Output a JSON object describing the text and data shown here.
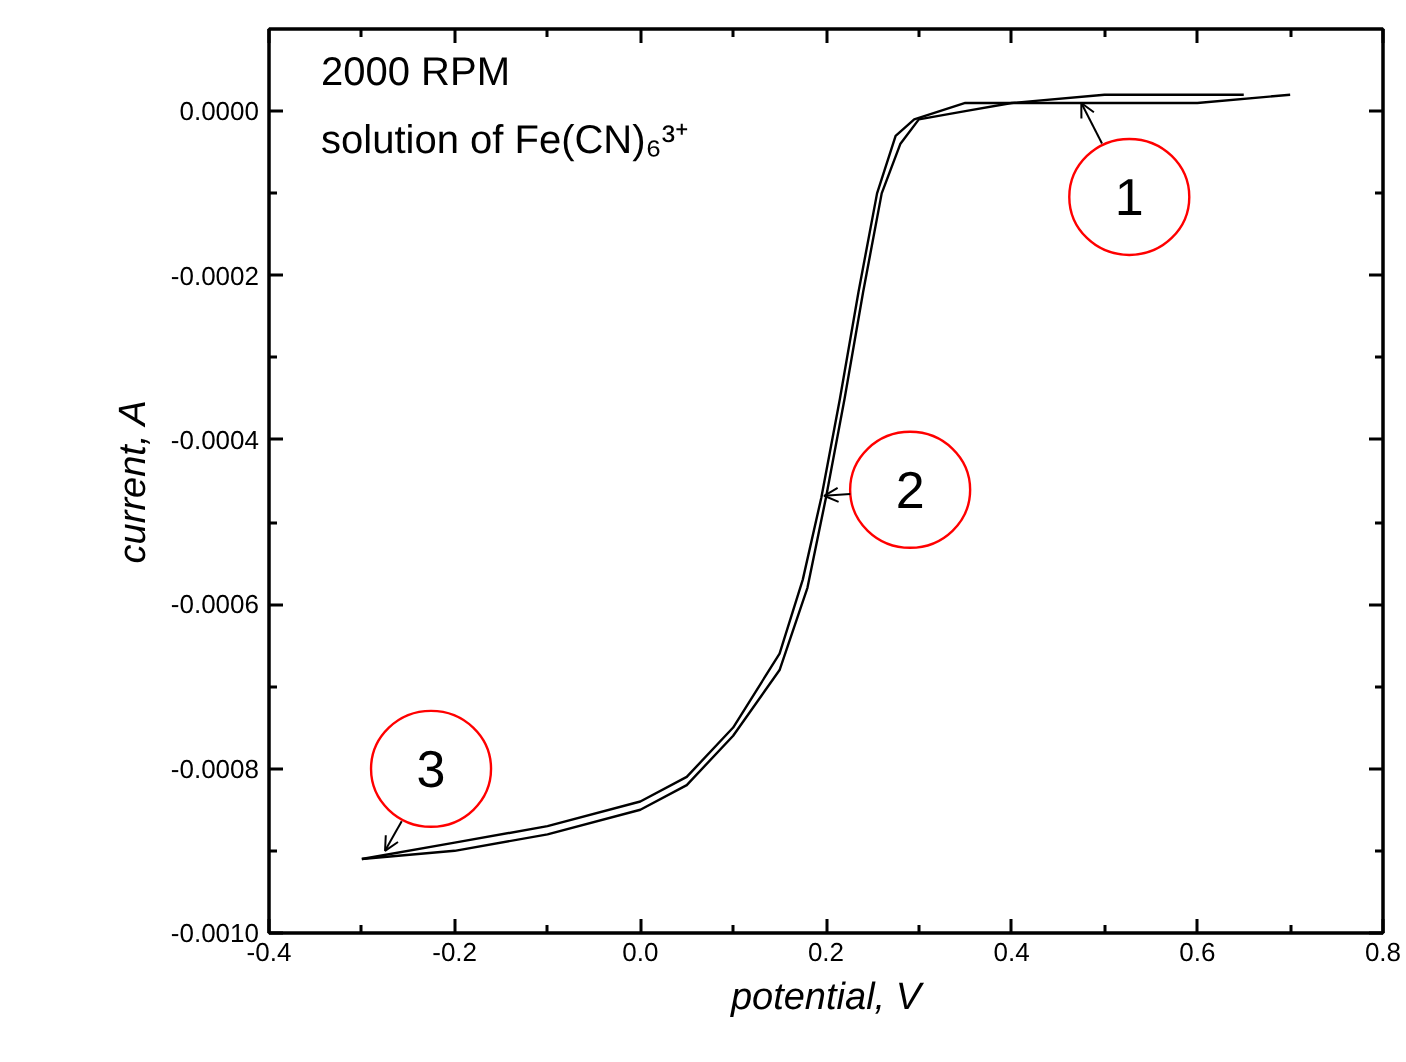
{
  "chart_data": {
    "type": "line",
    "xlabel": "potential, V",
    "ylabel": "current, A",
    "xlim": [
      -0.4,
      0.8
    ],
    "ylim": [
      -0.001,
      0.0001
    ],
    "xticks": [
      -0.4,
      {
        "value": -0.3,
        "label": null
      },
      -0.2,
      {
        "value": -0.1,
        "label": null
      },
      {
        "value": 0,
        "label": "0.0"
      },
      {
        "value": 0.1,
        "label": null
      },
      0.2,
      {
        "value": 0.3,
        "label": null
      },
      0.4,
      {
        "value": 0.5,
        "label": null
      },
      0.6,
      {
        "value": 0.7,
        "label": null
      },
      0.8
    ],
    "yticks": [
      {
        "value": -0.001,
        "label": "-0.0010"
      },
      {
        "value": -0.0009,
        "label": null
      },
      -0.0008,
      {
        "value": -0.0007,
        "label": null
      },
      -0.0006,
      {
        "value": -0.0005,
        "label": null
      },
      -0.0004,
      {
        "value": -0.0003,
        "label": null
      },
      -0.0002,
      {
        "value": -0.0001,
        "label": null
      },
      {
        "value": 0,
        "label": "0.0000"
      }
    ],
    "series": [
      {
        "color": "#000000",
        "x": [
          -0.3,
          -0.2,
          -0.1,
          0,
          0.05,
          0.1,
          0.15,
          0.18,
          0.2,
          0.22,
          0.24,
          0.26,
          0.28,
          0.3,
          0.35,
          0.4,
          0.5,
          0.6,
          0.7
        ],
        "values": [
          -0.00091,
          -0.0009,
          -0.00088,
          -0.00085,
          -0.00082,
          -0.00076,
          -0.00068,
          -0.00058,
          -0.00047,
          -0.00035,
          -0.00022,
          -0.0001,
          -4e-05,
          -1e-05,
          0,
          1e-05,
          1e-05,
          1e-05,
          2e-05
        ]
      },
      {
        "color": "#000000",
        "x": [
          -0.3,
          -0.2,
          -0.1,
          0,
          0.05,
          0.1,
          0.15,
          0.175,
          0.195,
          0.215,
          0.235,
          0.255,
          0.275,
          0.295,
          0.35,
          0.4,
          0.5,
          0.65
        ],
        "values": [
          -0.00091,
          -0.00089,
          -0.00087,
          -0.00084,
          -0.00081,
          -0.00075,
          -0.00066,
          -0.00057,
          -0.00047,
          -0.00035,
          -0.00022,
          -0.0001,
          -3e-05,
          -1e-05,
          1e-05,
          1e-05,
          2e-05,
          2e-05
        ]
      }
    ],
    "annotations": [
      "2000 RPM",
      "solution of Fe(CN)₆³⁺",
      {
        "text": "1",
        "x": 0.475,
        "y": 1e-05
      },
      {
        "text": "2",
        "x": 0.198,
        "y": -0.000468
      },
      {
        "text": "3",
        "x": -0.275,
        "y": -0.0009
      }
    ],
    "grid": false,
    "line_style": "solid",
    "marker": "none"
  }
}
